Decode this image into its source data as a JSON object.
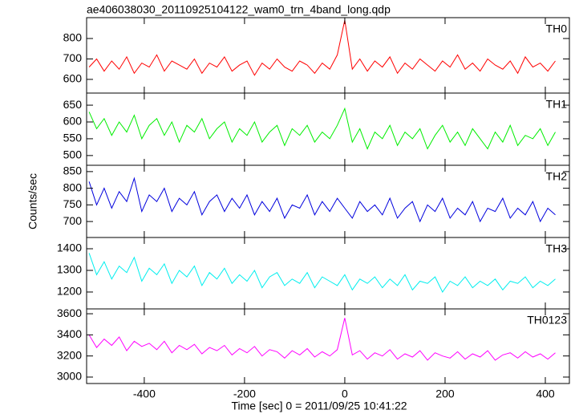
{
  "chart_data": [
    {
      "type": "line",
      "title": "ae406038030_20110925104122_wam0_trn_4band_long.qdp",
      "x": [
        -510,
        -495,
        -480,
        -465,
        -450,
        -435,
        -420,
        -405,
        -390,
        -375,
        -360,
        -345,
        -330,
        -315,
        -300,
        -285,
        -270,
        -255,
        -240,
        -225,
        -210,
        -195,
        -180,
        -165,
        -150,
        -135,
        -120,
        -105,
        -90,
        -75,
        -60,
        -45,
        -30,
        -15,
        0,
        15,
        30,
        45,
        60,
        75,
        90,
        105,
        120,
        135,
        150,
        165,
        180,
        195,
        210,
        225,
        240,
        255,
        270,
        285,
        300,
        315,
        330,
        345,
        360,
        375,
        390,
        405,
        420
      ],
      "series": [
        {
          "name": "TH0",
          "color": "#ff0000",
          "values": [
            660,
            700,
            640,
            690,
            650,
            710,
            630,
            680,
            660,
            720,
            640,
            690,
            670,
            650,
            700,
            630,
            680,
            660,
            710,
            640,
            670,
            690,
            620,
            680,
            650,
            700,
            660,
            640,
            690,
            670,
            630,
            680,
            650,
            720,
            890,
            650,
            700,
            640,
            690,
            660,
            710,
            630,
            680,
            650,
            700,
            670,
            640,
            690,
            660,
            720,
            650,
            680,
            640,
            700,
            670,
            650,
            690,
            630,
            710,
            660,
            680,
            640,
            690
          ]
        }
      ],
      "xlim": [
        -515,
        448
      ],
      "ylim": [
        533,
        902
      ],
      "yticks": [
        600,
        700,
        800
      ]
    },
    {
      "type": "line",
      "x": [
        -510,
        -495,
        -480,
        -465,
        -450,
        -435,
        -420,
        -405,
        -390,
        -375,
        -360,
        -345,
        -330,
        -315,
        -300,
        -285,
        -270,
        -255,
        -240,
        -225,
        -210,
        -195,
        -180,
        -165,
        -150,
        -135,
        -120,
        -105,
        -90,
        -75,
        -60,
        -45,
        -30,
        -15,
        0,
        15,
        30,
        45,
        60,
        75,
        90,
        105,
        120,
        135,
        150,
        165,
        180,
        195,
        210,
        225,
        240,
        255,
        270,
        285,
        300,
        315,
        330,
        345,
        360,
        375,
        390,
        405,
        420
      ],
      "series": [
        {
          "name": "TH1",
          "color": "#00ee00",
          "values": [
            630,
            580,
            610,
            560,
            600,
            570,
            620,
            550,
            590,
            610,
            560,
            600,
            540,
            590,
            570,
            610,
            550,
            580,
            600,
            540,
            580,
            560,
            600,
            540,
            570,
            590,
            530,
            580,
            560,
            590,
            540,
            570,
            550,
            590,
            640,
            540,
            580,
            520,
            570,
            550,
            590,
            530,
            570,
            550,
            580,
            520,
            560,
            590,
            540,
            570,
            530,
            580,
            550,
            520,
            570,
            540,
            590,
            530,
            560,
            550,
            580,
            530,
            570
          ]
        }
      ],
      "xlim": [
        -515,
        448
      ],
      "ylim": [
        471,
        686
      ],
      "yticks": [
        500,
        550,
        600,
        650
      ]
    },
    {
      "type": "line",
      "ylabel": "Counts/sec",
      "x": [
        -510,
        -495,
        -480,
        -465,
        -450,
        -435,
        -420,
        -405,
        -390,
        -375,
        -360,
        -345,
        -330,
        -315,
        -300,
        -285,
        -270,
        -255,
        -240,
        -225,
        -210,
        -195,
        -180,
        -165,
        -150,
        -135,
        -120,
        -105,
        -90,
        -75,
        -60,
        -45,
        -30,
        -15,
        0,
        15,
        30,
        45,
        60,
        75,
        90,
        105,
        120,
        135,
        150,
        165,
        180,
        195,
        210,
        225,
        240,
        255,
        270,
        285,
        300,
        315,
        330,
        345,
        360,
        375,
        390,
        405,
        420
      ],
      "series": [
        {
          "name": "TH2",
          "color": "#0000dd",
          "values": [
            820,
            750,
            800,
            740,
            790,
            760,
            830,
            730,
            780,
            760,
            800,
            730,
            770,
            750,
            790,
            720,
            760,
            780,
            730,
            770,
            740,
            780,
            720,
            760,
            730,
            770,
            710,
            750,
            740,
            780,
            720,
            760,
            730,
            770,
            740,
            710,
            760,
            730,
            750,
            720,
            770,
            710,
            740,
            760,
            700,
            750,
            730,
            770,
            710,
            740,
            720,
            760,
            700,
            740,
            730,
            770,
            710,
            740,
            720,
            760,
            700,
            740,
            720
          ]
        }
      ],
      "xlim": [
        -515,
        448
      ],
      "ylim": [
        652,
        869
      ],
      "yticks": [
        700,
        750,
        800,
        850
      ]
    },
    {
      "type": "line",
      "x": [
        -510,
        -495,
        -480,
        -465,
        -450,
        -435,
        -420,
        -405,
        -390,
        -375,
        -360,
        -345,
        -330,
        -315,
        -300,
        -285,
        -270,
        -255,
        -240,
        -225,
        -210,
        -195,
        -180,
        -165,
        -150,
        -135,
        -120,
        -105,
        -90,
        -75,
        -60,
        -45,
        -30,
        -15,
        0,
        15,
        30,
        45,
        60,
        75,
        90,
        105,
        120,
        135,
        150,
        165,
        180,
        195,
        210,
        225,
        240,
        255,
        270,
        285,
        300,
        315,
        330,
        345,
        360,
        375,
        390,
        405,
        420
      ],
      "series": [
        {
          "name": "TH3",
          "color": "#00eeee",
          "values": [
            1380,
            1280,
            1340,
            1260,
            1320,
            1290,
            1360,
            1250,
            1310,
            1280,
            1330,
            1240,
            1300,
            1270,
            1320,
            1230,
            1290,
            1260,
            1310,
            1240,
            1280,
            1250,
            1300,
            1220,
            1270,
            1290,
            1230,
            1260,
            1240,
            1290,
            1220,
            1270,
            1250,
            1230,
            1280,
            1210,
            1260,
            1240,
            1270,
            1220,
            1260,
            1230,
            1280,
            1210,
            1250,
            1240,
            1270,
            1200,
            1250,
            1230,
            1270,
            1220,
            1250,
            1230,
            1260,
            1210,
            1250,
            1240,
            1270,
            1220,
            1250,
            1230,
            1260
          ]
        }
      ],
      "xlim": [
        -515,
        448
      ],
      "ylim": [
        1122,
        1452
      ],
      "yticks": [
        1200,
        1300,
        1400
      ]
    },
    {
      "type": "line",
      "xlabel": "Time [sec] 0 = 2011/09/25 10:41:22",
      "x": [
        -510,
        -495,
        -480,
        -465,
        -450,
        -435,
        -420,
        -405,
        -390,
        -375,
        -360,
        -345,
        -330,
        -315,
        -300,
        -285,
        -270,
        -255,
        -240,
        -225,
        -210,
        -195,
        -180,
        -165,
        -150,
        -135,
        -120,
        -105,
        -90,
        -75,
        -60,
        -45,
        -30,
        -15,
        0,
        15,
        30,
        45,
        60,
        75,
        90,
        105,
        120,
        135,
        150,
        165,
        180,
        195,
        210,
        225,
        240,
        255,
        270,
        285,
        300,
        315,
        330,
        345,
        360,
        375,
        390,
        405,
        420
      ],
      "series": [
        {
          "name": "TH0123",
          "color": "#ff00ff",
          "values": [
            3400,
            3280,
            3360,
            3300,
            3380,
            3250,
            3340,
            3290,
            3320,
            3260,
            3340,
            3230,
            3300,
            3260,
            3310,
            3220,
            3280,
            3250,
            3300,
            3210,
            3270,
            3230,
            3290,
            3200,
            3260,
            3240,
            3180,
            3250,
            3210,
            3270,
            3190,
            3240,
            3200,
            3260,
            3560,
            3210,
            3250,
            3170,
            3230,
            3200,
            3260,
            3170,
            3220,
            3190,
            3250,
            3160,
            3230,
            3200,
            3180,
            3240,
            3170,
            3220,
            3190,
            3250,
            3160,
            3210,
            3230,
            3180,
            3240,
            3190,
            3220,
            3170,
            3230
          ]
        }
      ],
      "xlim": [
        -515,
        448
      ],
      "ylim": [
        2939,
        3646
      ],
      "yticks": [
        3000,
        3200,
        3400,
        3600
      ],
      "xticks": [
        -400,
        -200,
        0,
        200,
        400
      ]
    }
  ]
}
